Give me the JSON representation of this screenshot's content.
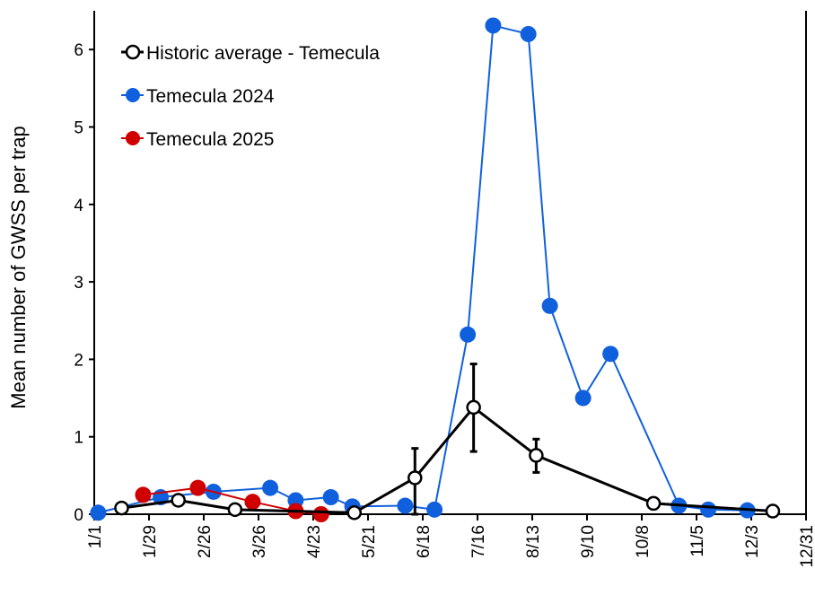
{
  "chart_data": {
    "type": "line",
    "title": "",
    "xlabel": "",
    "ylabel": "Mean number of GWSS per trap",
    "xlim": [
      "1/1",
      "12/31"
    ],
    "ylim": [
      0,
      6.5
    ],
    "x_ticks": [
      "1/1",
      "1/29",
      "2/26",
      "3/26",
      "4/23",
      "5/21",
      "6/18",
      "7/16",
      "8/13",
      "9/10",
      "10/8",
      "11/5",
      "12/3",
      "12/31"
    ],
    "y_ticks": [
      "0",
      "1",
      "2",
      "3",
      "4",
      "5",
      "6"
    ],
    "grid": false,
    "legend_position": "top-left",
    "series": [
      {
        "name": "Historic average - Temecula",
        "color": "#000000",
        "marker": "open-circle",
        "points": [
          {
            "x": "1/15",
            "y": 0.08
          },
          {
            "x": "2/13",
            "y": 0.18
          },
          {
            "x": "3/14",
            "y": 0.06
          },
          {
            "x": "5/14",
            "y": 0.02
          },
          {
            "x": "6/14",
            "y": 0.47,
            "err_low": 0.0,
            "err_high": 0.85
          },
          {
            "x": "7/14",
            "y": 1.38,
            "err_low": 0.81,
            "err_high": 1.94
          },
          {
            "x": "8/15",
            "y": 0.76,
            "err_low": 0.54,
            "err_high": 0.97
          },
          {
            "x": "10/14",
            "y": 0.14
          },
          {
            "x": "12/14",
            "y": 0.04
          }
        ]
      },
      {
        "name": "Temecula 2024",
        "color": "#1060DD",
        "marker": "filled-circle",
        "points": [
          {
            "x": "1/3",
            "y": 0.02
          },
          {
            "x": "2/4",
            "y": 0.22
          },
          {
            "x": "3/3",
            "y": 0.29
          },
          {
            "x": "4/1",
            "y": 0.34
          },
          {
            "x": "4/14",
            "y": 0.18
          },
          {
            "x": "5/2",
            "y": 0.22
          },
          {
            "x": "5/13",
            "y": 0.1
          },
          {
            "x": "6/9",
            "y": 0.11
          },
          {
            "x": "6/24",
            "y": 0.06
          },
          {
            "x": "7/11",
            "y": 2.32
          },
          {
            "x": "7/24",
            "y": 6.31
          },
          {
            "x": "8/11",
            "y": 6.2
          },
          {
            "x": "8/22",
            "y": 2.69
          },
          {
            "x": "9/8",
            "y": 1.5
          },
          {
            "x": "9/22",
            "y": 2.07
          },
          {
            "x": "10/27",
            "y": 0.11
          },
          {
            "x": "11/11",
            "y": 0.06
          },
          {
            "x": "12/1",
            "y": 0.05
          }
        ]
      },
      {
        "name": "Temecula 2025",
        "color": "#D00000",
        "marker": "filled-circle",
        "points": [
          {
            "x": "1/26",
            "y": 0.25
          },
          {
            "x": "2/23",
            "y": 0.34
          },
          {
            "x": "3/23",
            "y": 0.16
          },
          {
            "x": "4/14",
            "y": 0.04
          },
          {
            "x": "4/27",
            "y": 0.0
          }
        ]
      }
    ]
  }
}
